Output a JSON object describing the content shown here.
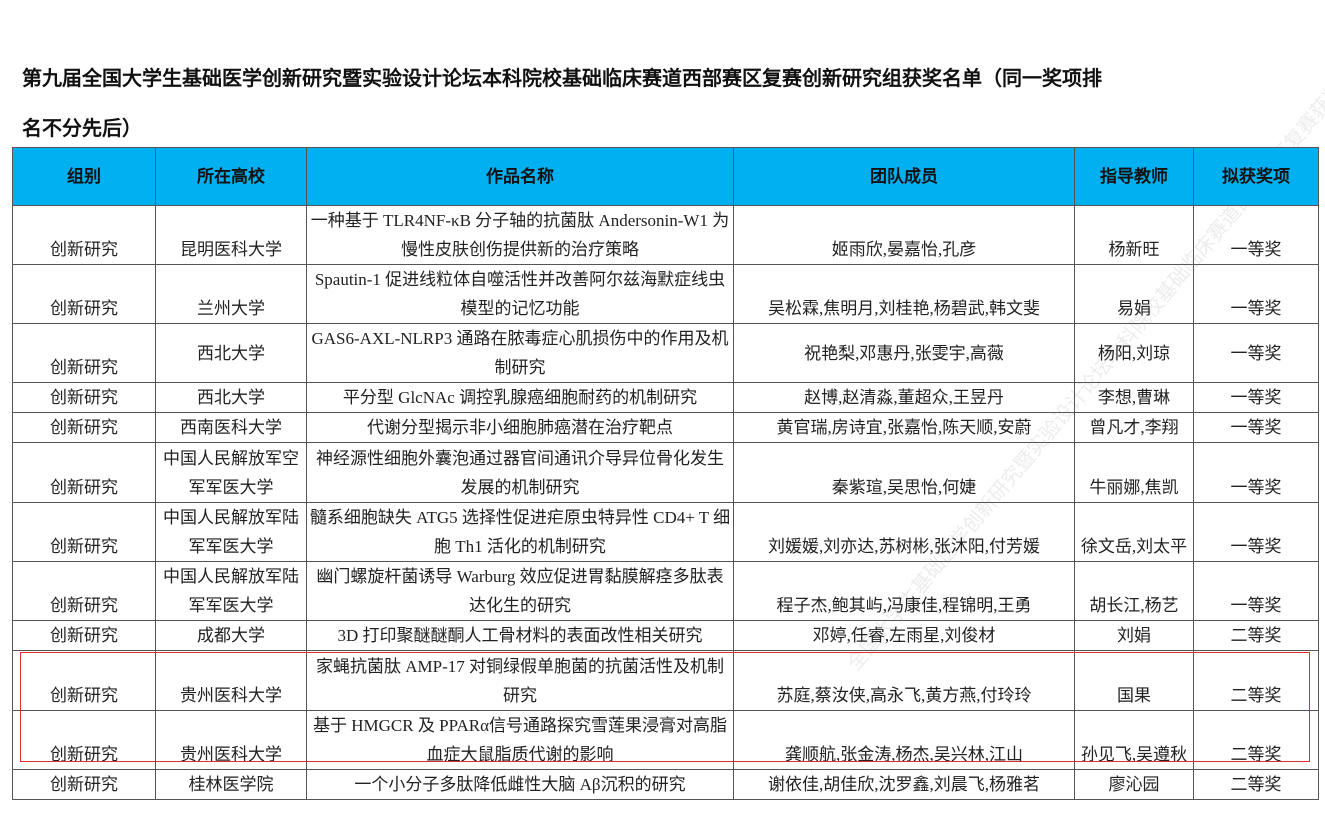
{
  "title_line1": "第九届全国大学生基础医学创新研究暨实验设计论坛本科院校基础临床赛道西部赛区复赛创新研究组获奖名单（同一奖项排",
  "title_line2": "名不分先后）",
  "columns": [
    "组别",
    "所在高校",
    "作品名称",
    "团队成员",
    "指导教师",
    "拟获奖项"
  ],
  "rows": [
    {
      "group": "创新研究",
      "school": "昆明医科大学",
      "title": "一种基于 TLR4NF-κB 分子轴的抗菌肽 Andersonin-W1 为慢性皮肤创伤提供新的治疗策略",
      "members": "姬雨欣,晏嘉怡,孔彦",
      "advisor": "杨新旺",
      "award": "一等奖"
    },
    {
      "group": "创新研究",
      "school": "兰州大学",
      "title": "Spautin-1 促进线粒体自噬活性并改善阿尔兹海默症线虫模型的记忆功能",
      "members": "吴松霖,焦明月,刘桂艳,杨碧武,韩文斐",
      "advisor": "易娟",
      "award": "一等奖"
    },
    {
      "group": "创新研究",
      "school": "西北大学",
      "title": "GAS6-AXL-NLRP3 通路在脓毒症心肌损伤中的作用及机制研究",
      "members": "祝艳梨,邓惠丹,张雯宇,高薇",
      "advisor": "杨阳,刘琼",
      "award": "一等奖"
    },
    {
      "group": "创新研究",
      "school": "西北大学",
      "title": "平分型 GlcNAc 调控乳腺癌细胞耐药的机制研究",
      "members": "赵博,赵清淼,董超众,王昱丹",
      "advisor": "李想,曹琳",
      "award": "一等奖"
    },
    {
      "group": "创新研究",
      "school": "西南医科大学",
      "title": "代谢分型揭示非小细胞肺癌潜在治疗靶点",
      "members": "黄官瑞,房诗宜,张嘉怡,陈天顺,安蔚",
      "advisor": "曾凡才,李翔",
      "award": "一等奖"
    },
    {
      "group": "创新研究",
      "school": "中国人民解放军空军军医大学",
      "title": "神经源性细胞外囊泡通过器官间通讯介导异位骨化发生发展的机制研究",
      "members": "秦紫瑄,吴思怡,何婕",
      "advisor": "牛丽娜,焦凯",
      "award": "一等奖"
    },
    {
      "group": "创新研究",
      "school": "中国人民解放军陆军军医大学",
      "title": "髓系细胞缺失 ATG5 选择性促进疟原虫特异性 CD4+ T 细胞 Th1 活化的机制研究",
      "members": "刘媛媛,刘亦达,苏树彬,张沐阳,付芳媛",
      "advisor": "徐文岳,刘太平",
      "award": "一等奖"
    },
    {
      "group": "创新研究",
      "school": "中国人民解放军陆军军医大学",
      "title": "幽门螺旋杆菌诱导 Warburg 效应促进胃黏膜解痉多肽表达化生的研究",
      "members": "程子杰,鲍其屿,冯康佳,程锦明,王勇",
      "advisor": "胡长江,杨艺",
      "award": "一等奖"
    },
    {
      "group": "创新研究",
      "school": "成都大学",
      "title": "3D 打印聚醚醚酮人工骨材料的表面改性相关研究",
      "members": "邓婷,任睿,左雨星,刘俊材",
      "advisor": "刘娟",
      "award": "二等奖"
    },
    {
      "group": "创新研究",
      "school": "贵州医科大学",
      "title": "家蝇抗菌肽 AMP-17 对铜绿假单胞菌的抗菌活性及机制研究",
      "members": "苏庭,蔡汝侠,高永飞,黄方燕,付玲玲",
      "advisor": "国果",
      "award": "二等奖"
    },
    {
      "group": "创新研究",
      "school": "贵州医科大学",
      "title": "基于 HMGCR 及 PPARα信号通路探究雪莲果浸膏对高脂血症大鼠脂质代谢的影响",
      "members": "龚顺航,张金涛,杨杰,吴兴林,江山",
      "advisor": "孙见飞,吴遵秋",
      "award": "二等奖"
    },
    {
      "group": "创新研究",
      "school": "桂林医学院",
      "title": "一个小分子多肽降低雌性大脑 Aβ沉积的研究",
      "members": "谢依佳,胡佳欣,沈罗鑫,刘晨飞,杨雅茗",
      "advisor": "廖沁园",
      "award": "二等奖"
    }
  ],
  "colors": {
    "header_bg": "#00b0f0",
    "highlight_box": "#e03030"
  }
}
